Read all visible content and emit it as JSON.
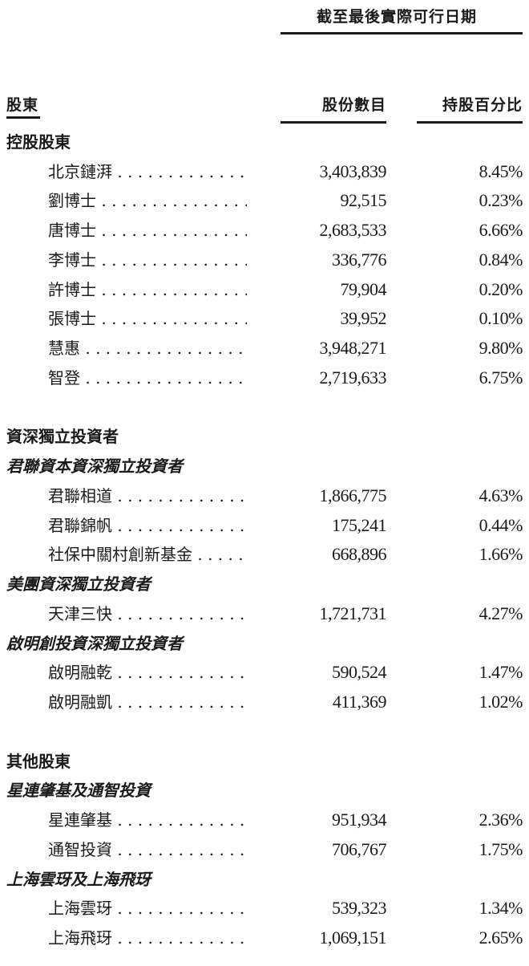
{
  "header": {
    "date_caption": "截至最後實際可行日期",
    "col_shareholder": "股東",
    "col_shares": "股份數目",
    "col_percent": "持股百分比"
  },
  "rows": [
    {
      "type": "group",
      "label": "控股股東"
    },
    {
      "type": "item",
      "name": "北京鏈湃",
      "shares": "3,403,839",
      "percent": "8.45%"
    },
    {
      "type": "item",
      "name": "劉博士",
      "shares": "92,515",
      "percent": "0.23%"
    },
    {
      "type": "item",
      "name": "唐博士",
      "shares": "2,683,533",
      "percent": "6.66%"
    },
    {
      "type": "item",
      "name": "李博士",
      "shares": "336,776",
      "percent": "0.84%"
    },
    {
      "type": "item",
      "name": "許博士",
      "shares": "79,904",
      "percent": "0.20%"
    },
    {
      "type": "item",
      "name": "張博士",
      "shares": "39,952",
      "percent": "0.10%"
    },
    {
      "type": "item",
      "name": "慧惠",
      "shares": "3,948,271",
      "percent": "9.80%"
    },
    {
      "type": "item",
      "name": "智登",
      "shares": "2,719,633",
      "percent": "6.75%"
    },
    {
      "type": "blank"
    },
    {
      "type": "group",
      "label": "資深獨立投資者"
    },
    {
      "type": "sub",
      "label": "君聯資本資深獨立投資者"
    },
    {
      "type": "item",
      "name": "君聯相道",
      "shares": "1,866,775",
      "percent": "4.63%"
    },
    {
      "type": "item",
      "name": "君聯錦帆",
      "shares": "175,241",
      "percent": "0.44%"
    },
    {
      "type": "item",
      "name": "社保中關村創新基金",
      "shares": "668,896",
      "percent": "1.66%"
    },
    {
      "type": "sub",
      "label": "美團資深獨立投資者"
    },
    {
      "type": "item",
      "name": "天津三快",
      "shares": "1,721,731",
      "percent": "4.27%"
    },
    {
      "type": "sub",
      "label": "啟明創投資深獨立投資者"
    },
    {
      "type": "item",
      "name": "啟明融乾",
      "shares": "590,524",
      "percent": "1.47%"
    },
    {
      "type": "item",
      "name": "啟明融凱",
      "shares": "411,369",
      "percent": "1.02%"
    },
    {
      "type": "blank"
    },
    {
      "type": "group",
      "label": "其他股東"
    },
    {
      "type": "sub",
      "label": "星連肇基及通智投資"
    },
    {
      "type": "item",
      "name": "星連肇基",
      "shares": "951,934",
      "percent": "2.36%"
    },
    {
      "type": "item",
      "name": "通智投資",
      "shares": "706,767",
      "percent": "1.75%"
    },
    {
      "type": "sub",
      "label": "上海雲玡及上海飛玡"
    },
    {
      "type": "item",
      "name": "上海雲玡",
      "shares": "539,323",
      "percent": "1.34%"
    },
    {
      "type": "item",
      "name": "上海飛玡",
      "shares": "1,069,151",
      "percent": "2.65%"
    }
  ]
}
